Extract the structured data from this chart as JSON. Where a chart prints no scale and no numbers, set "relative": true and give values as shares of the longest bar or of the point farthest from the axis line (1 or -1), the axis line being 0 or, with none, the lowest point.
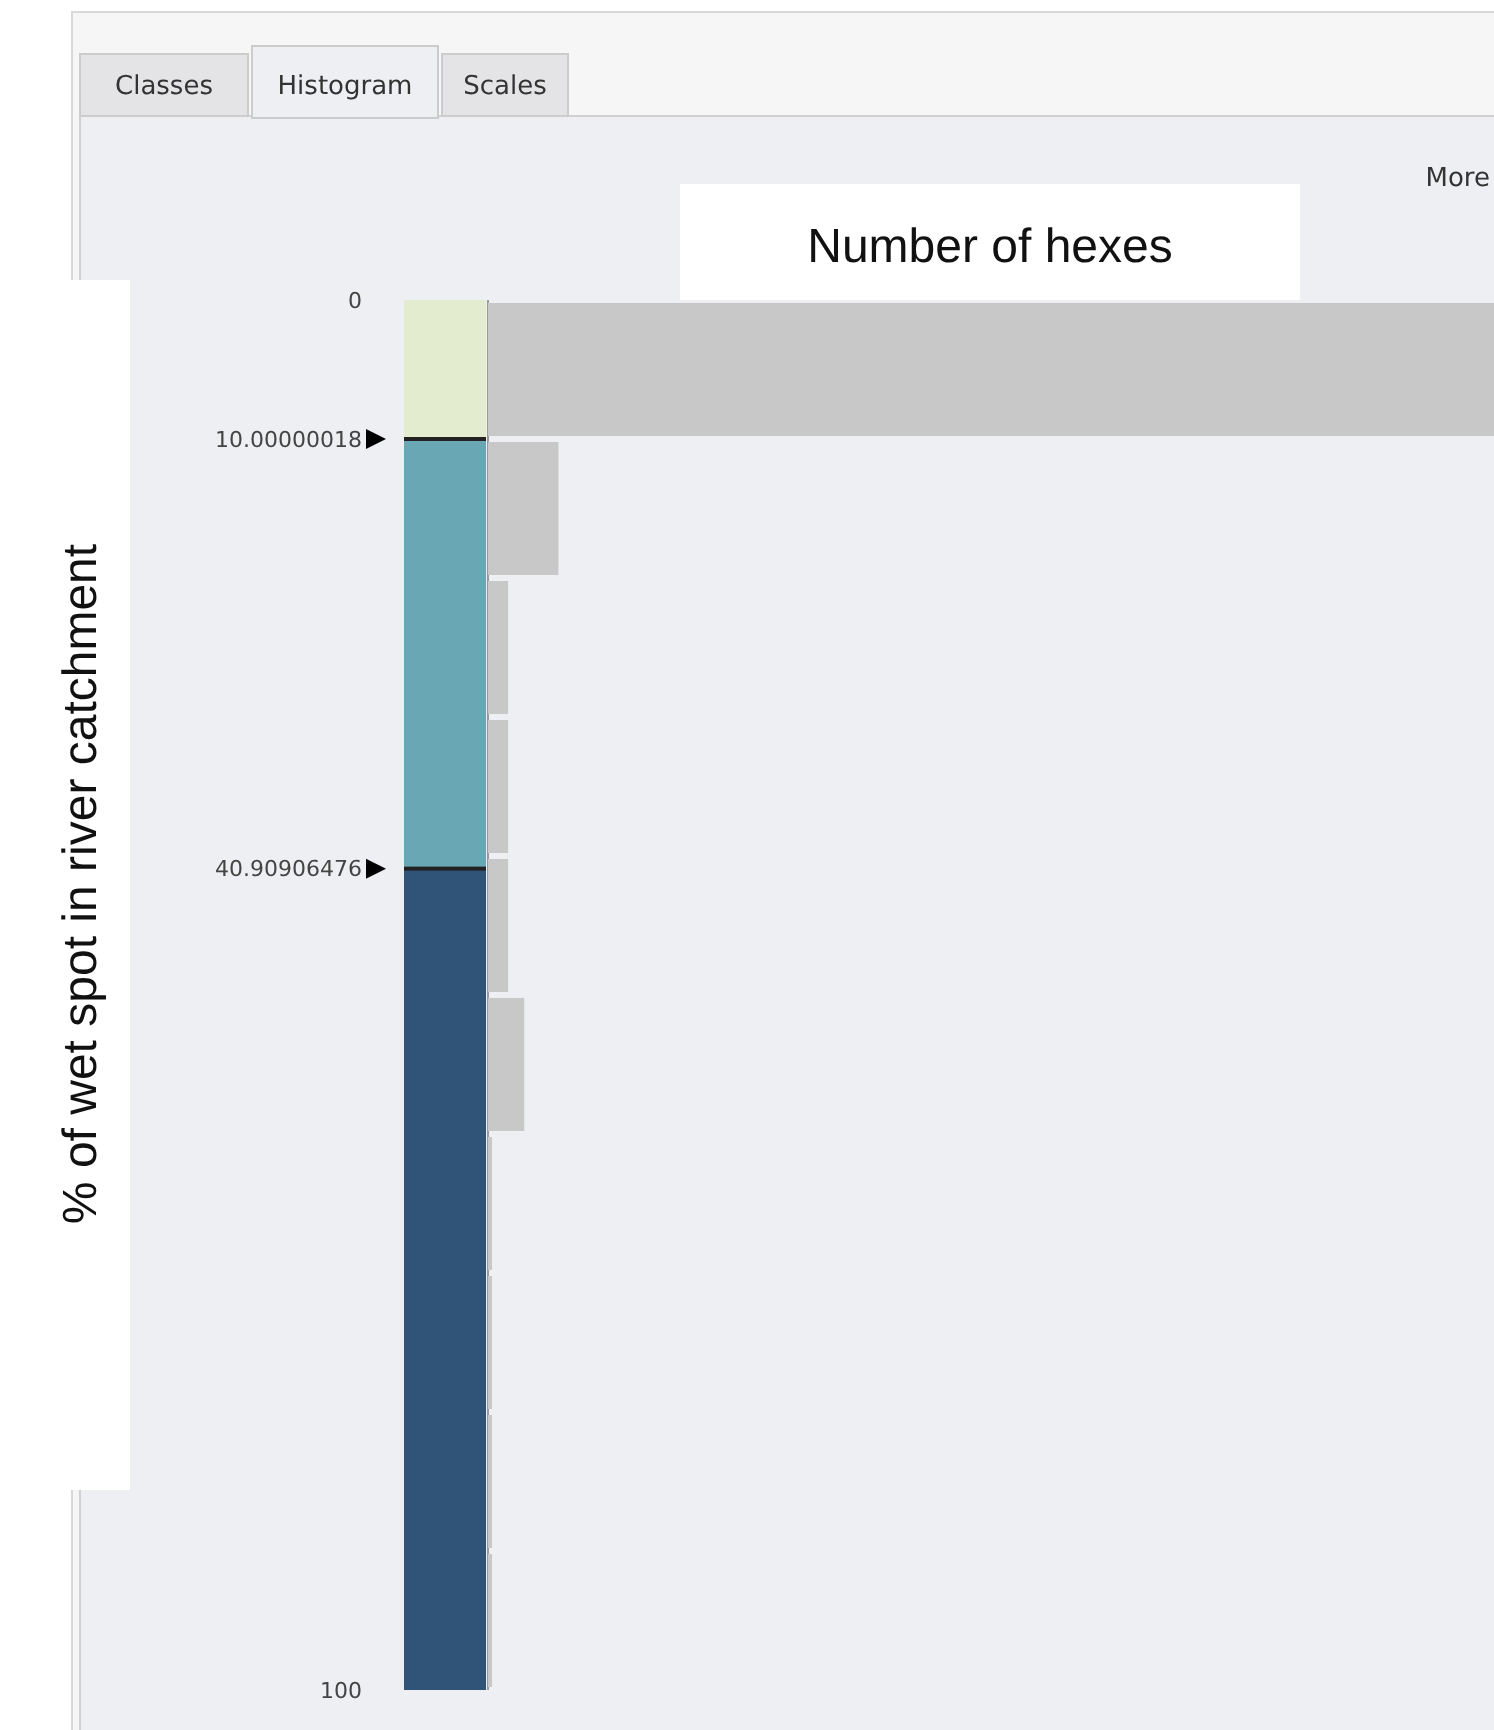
{
  "chart_data": {
    "type": "bar",
    "orientation": "horizontal",
    "relative": true,
    "xlabel": "Number of hexes",
    "ylabel": "% of wet spot in river catchment",
    "x": [
      5,
      15,
      25,
      35,
      45,
      55,
      65,
      75,
      85,
      95
    ],
    "values": [
      1,
      0.07,
      0.02,
      0.02,
      0.02,
      0.036,
      0.004,
      0.004,
      0.004,
      0.004
    ],
    "color": "#c8c8c8",
    "ylim": [
      100,
      0
    ],
    "yticks": [
      0,
      10.00000018,
      40.90906476,
      100
    ],
    "annotations": [
      "Classes",
      "Histogram",
      "Scales",
      "More"
    ]
  }
}
